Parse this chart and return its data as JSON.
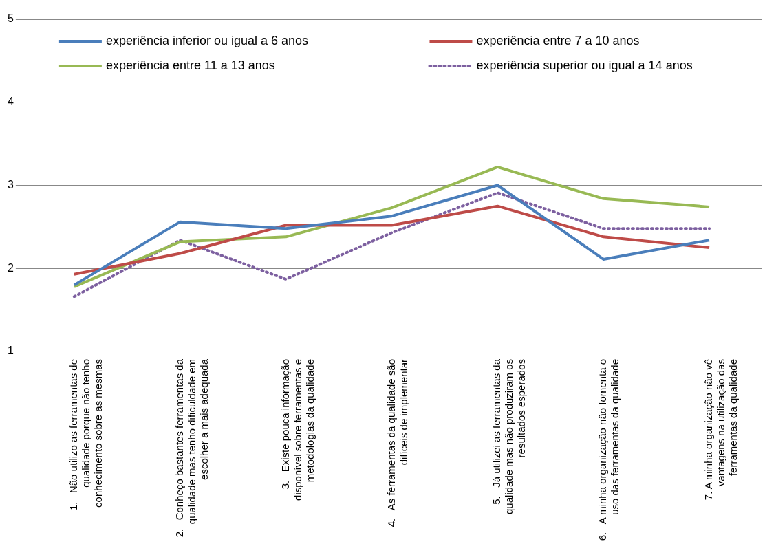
{
  "chart_data": {
    "type": "line",
    "categories": [
      "1.   Não utilizo as ferramentas de qualidade porque não tenho conhecimento sobre as mesmas",
      "2.   Conheço bastantes ferramentas da qualidade mas tenho dificuldade em escolher a mais adequada",
      "3.   Existe pouca informação disponível sobre ferramentas e metodologias da qualidade",
      "4.   As ferramentas da qualidade são difíceis de implementar",
      "5.   Já utilizei as ferramentas da qualidade mas não produziram os resultados esperados",
      "6.   A minha organização não fomenta o uso das ferramentas da qualidade",
      "7. A minha organização não vê vantagens na utilização das ferramentas da qualidade"
    ],
    "series": [
      {
        "name": "experiência inferior ou igual a 6 anos",
        "color": "#4a7ebb",
        "values": [
          1.8,
          2.56,
          2.48,
          2.63,
          3.0,
          2.11,
          2.34
        ]
      },
      {
        "name": "experiência entre 7 a 10 anos",
        "color": "#be4b48",
        "values": [
          1.93,
          2.18,
          2.52,
          2.52,
          2.75,
          2.38,
          2.25
        ]
      },
      {
        "name": "experiência entre 11 a 13 anos",
        "color": "#98b954",
        "values": [
          1.78,
          2.32,
          2.38,
          2.73,
          3.22,
          2.84,
          2.74
        ]
      },
      {
        "name": "experiência superior ou igual a 14 anos",
        "color": "#7d60a0",
        "line_style": "dotted",
        "values": [
          1.66,
          2.34,
          1.87,
          2.43,
          2.91,
          2.48,
          2.48
        ]
      }
    ],
    "ylim": [
      1,
      5
    ],
    "yticks": [
      1,
      2,
      3,
      4,
      5
    ],
    "grid": "y",
    "legend": "top",
    "marker": "none"
  }
}
